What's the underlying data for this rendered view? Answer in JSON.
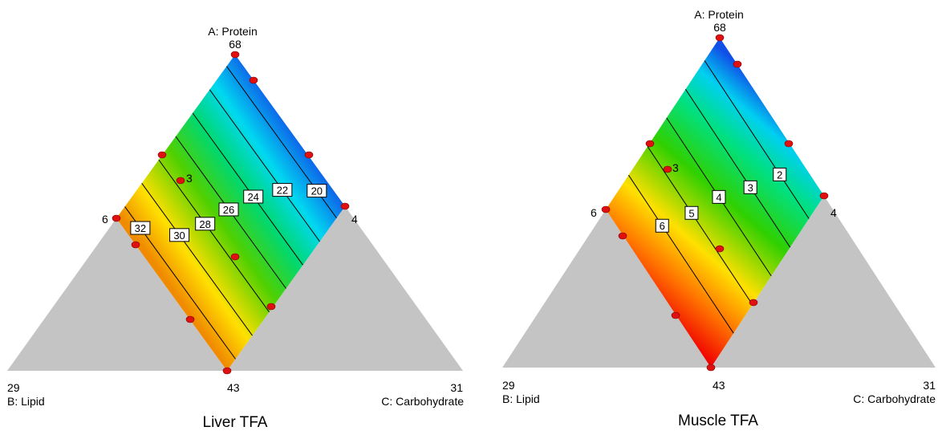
{
  "colors": {
    "gray_region": "#c4c4c4",
    "design_point": "#e01010",
    "contour_line": "#000000",
    "label_box_fill": "#ffffff"
  },
  "chart_data": [
    {
      "type": "mixture-contour",
      "title": "Liver TFA",
      "components": [
        {
          "id": "A",
          "name": "A: Protein",
          "high": "68",
          "low": "6"
        },
        {
          "id": "B",
          "name": "B: Lipid",
          "high": "29",
          "low": ""
        },
        {
          "id": "C",
          "name": "C: Carbohydrate",
          "high": "31",
          "low": ""
        }
      ],
      "vertex_labels": {
        "top": "68",
        "top_name": "A: Protein",
        "left": "29",
        "left_name": "B: Lipid",
        "right": "31",
        "right_name": "C: Carbohydrate",
        "bottom_mid": "43",
        "left_mid": "6",
        "right_mid": "4"
      },
      "contour_levels": [
        "20",
        "22",
        "24",
        "26",
        "28",
        "30",
        "32"
      ],
      "response_range": [
        19,
        33
      ],
      "colormap": "red-yellow-green-cyan-blue (high to low)",
      "centroid_label": "3",
      "design_points": 11
    },
    {
      "type": "mixture-contour",
      "title": "Muscle TFA",
      "components": [
        {
          "id": "A",
          "name": "A: Protein",
          "high": "68",
          "low": "6"
        },
        {
          "id": "B",
          "name": "B: Lipid",
          "high": "29",
          "low": ""
        },
        {
          "id": "C",
          "name": "C: Carbohydrate",
          "high": "31",
          "low": ""
        }
      ],
      "vertex_labels": {
        "top": "68",
        "top_name": "A: Protein",
        "left": "29",
        "left_name": "B: Lipid",
        "right": "31",
        "right_name": "C: Carbohydrate",
        "bottom_mid": "43",
        "left_mid": "6",
        "right_mid": "4"
      },
      "contour_levels": [
        "2",
        "3",
        "4",
        "5",
        "6"
      ],
      "response_range": [
        1.2,
        7.2
      ],
      "colormap": "red-yellow-green-cyan-blue (high to low)",
      "centroid_label": "3",
      "design_points": 11
    }
  ]
}
